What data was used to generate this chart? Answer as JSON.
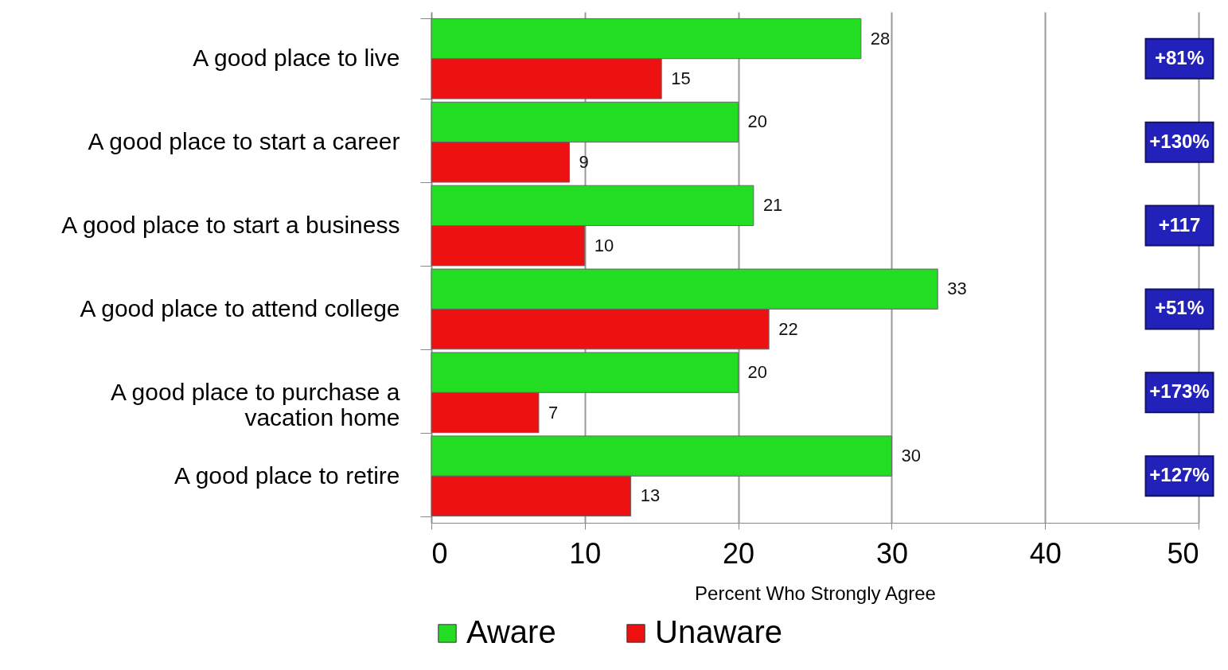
{
  "chart_data": {
    "type": "bar",
    "orientation": "horizontal",
    "xlabel": "Percent Who Strongly Agree",
    "categories": [
      "A good place to live",
      "A good place to start a career",
      "A good place to start a business",
      "A good place to attend college",
      "A good place to purchase a vacation home",
      "A good place to retire"
    ],
    "series": [
      {
        "name": "Aware",
        "color": "#22dd22",
        "values": [
          28,
          20,
          21,
          33,
          20,
          30
        ]
      },
      {
        "name": "Unaware",
        "color": "#ee1111",
        "values": [
          15,
          9,
          10,
          22,
          7,
          13
        ]
      }
    ],
    "xlim": [
      0,
      50
    ],
    "xticks": [
      0,
      10,
      20,
      30,
      40,
      50
    ],
    "grid": "x",
    "legend": "bottom",
    "data_labels": true,
    "annotations": [
      "+81%",
      "+130%",
      "+117",
      "+51%",
      "+173%",
      "+127%"
    ]
  }
}
